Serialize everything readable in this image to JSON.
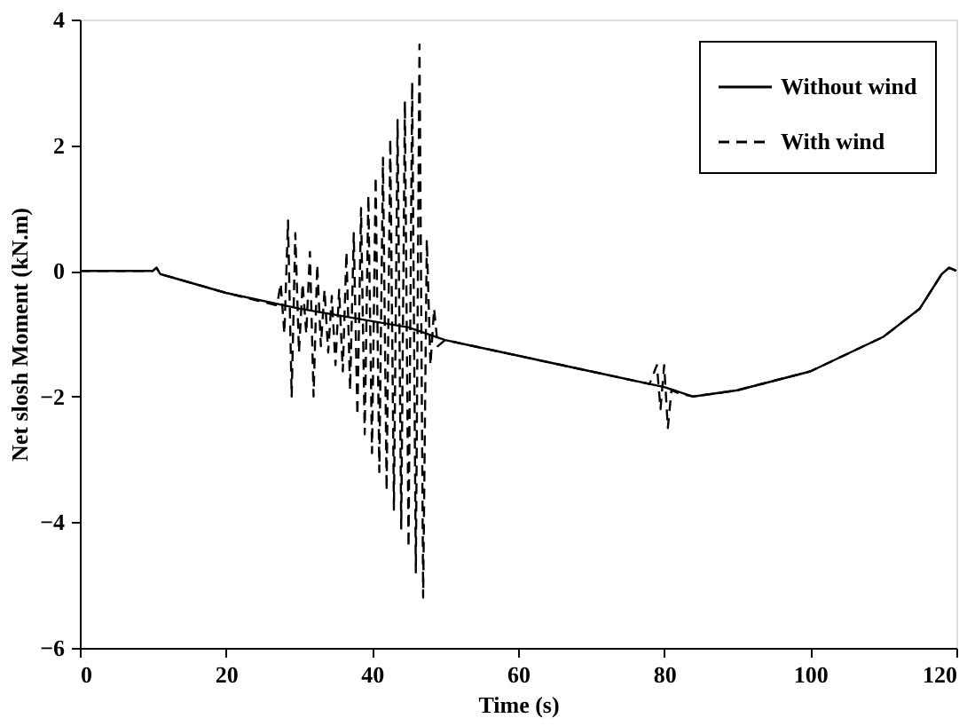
{
  "chart_data": {
    "type": "line",
    "xlabel": "Time (s)",
    "ylabel": "Net slosh Moment (kN.m)",
    "xlim": [
      0,
      120
    ],
    "xticks": [
      0,
      20,
      40,
      60,
      80,
      100,
      120
    ],
    "ylim": [
      -6,
      4
    ],
    "yticks": [
      -6,
      -4,
      -2,
      0,
      2,
      4
    ],
    "grid": false,
    "legend": "top right",
    "marker": "none",
    "series": [
      {
        "name": "Without wind",
        "color": "#000000",
        "line_style": "solid",
        "x": [
          0,
          10,
          10.5,
          11,
          20,
          30,
          40,
          45,
          50,
          60,
          70,
          80,
          84,
          90,
          100,
          110,
          115,
          118,
          119,
          120
        ],
        "values": [
          0,
          0,
          0.05,
          -0.05,
          -0.35,
          -0.6,
          -0.8,
          -0.9,
          -1.1,
          -1.35,
          -1.6,
          -1.85,
          -2.0,
          -1.9,
          -1.6,
          -1.05,
          -0.6,
          -0.05,
          0.05,
          0
        ]
      },
      {
        "name": "With wind",
        "color": "#000000",
        "line_style": "dashed",
        "x": [
          0,
          10,
          10.5,
          11,
          20,
          27,
          27.5,
          28,
          28.5,
          29,
          29.5,
          30,
          30.5,
          31,
          31.5,
          32,
          32.5,
          33,
          33.5,
          34,
          34.5,
          35,
          35.5,
          36,
          36.5,
          37,
          37.5,
          38,
          38.5,
          39,
          39.5,
          40,
          40.5,
          41,
          41.5,
          42,
          42.5,
          43,
          43.5,
          44,
          44.5,
          45,
          45.5,
          46,
          46.5,
          47,
          47.5,
          48,
          48.5,
          49,
          50,
          60,
          70,
          78,
          79,
          79.5,
          80,
          80.5,
          81,
          82,
          84,
          90,
          100,
          110,
          115,
          118,
          119,
          120
        ],
        "values": [
          0,
          0,
          0.05,
          -0.05,
          -0.35,
          -0.55,
          -0.2,
          -1.0,
          0.8,
          -2.0,
          0.6,
          -1.3,
          -0.2,
          -1.0,
          0.3,
          -2.0,
          0.1,
          -1.2,
          -0.3,
          -1.3,
          -0.4,
          -1.5,
          -0.3,
          -1.6,
          0.3,
          -1.9,
          0.6,
          -2.3,
          1.0,
          -2.6,
          1.2,
          -2.9,
          1.5,
          -3.2,
          1.8,
          -3.5,
          2.1,
          -3.8,
          2.4,
          -4.1,
          2.7,
          -4.4,
          3.0,
          -4.8,
          3.6,
          -5.2,
          0.5,
          -1.5,
          -0.6,
          -1.2,
          -1.1,
          -1.35,
          -1.6,
          -1.8,
          -1.5,
          -2.2,
          -1.5,
          -2.5,
          -1.9,
          -1.95,
          -2.0,
          -1.9,
          -1.6,
          -1.05,
          -0.6,
          -0.05,
          0.05,
          0
        ]
      }
    ]
  }
}
